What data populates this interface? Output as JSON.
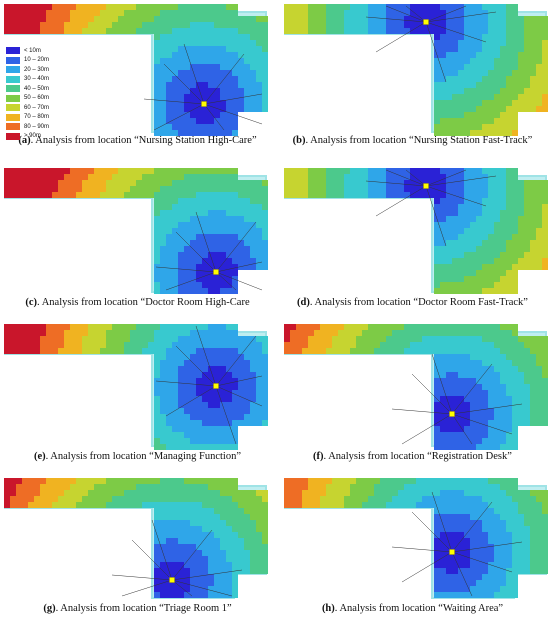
{
  "legend": {
    "items": [
      {
        "label": "< 10m",
        "color": "#2a22d6"
      },
      {
        "label": "10 – 20m",
        "color": "#2f63e6"
      },
      {
        "label": "20 – 30m",
        "color": "#2fa6e9"
      },
      {
        "label": "30 – 40m",
        "color": "#38c9cf"
      },
      {
        "label": "40 – 50m",
        "color": "#4cc98c"
      },
      {
        "label": "50 – 60m",
        "color": "#7dcb46"
      },
      {
        "label": "60 – 70m",
        "color": "#c6d430"
      },
      {
        "label": "70 – 80m",
        "color": "#f0b321"
      },
      {
        "label": "80 – 90m",
        "color": "#ee6d25"
      },
      {
        "label": "> 90m",
        "color": "#c9162b"
      }
    ]
  },
  "panels": [
    {
      "id": "a",
      "caption_id": "(a)",
      "caption_text": ". Analysis from location “Nursing Station High-Care”"
    },
    {
      "id": "b",
      "caption_id": "(b)",
      "caption_text": ". Analysis from location “Nursing Station Fast-Track”"
    },
    {
      "id": "c",
      "caption_id": "(c)",
      "caption_text": ". Analysis from location “Doctor Room High-Care"
    },
    {
      "id": "d",
      "caption_id": "(d)",
      "caption_text": ". Analysis from location “Doctor Room Fast-Track”"
    },
    {
      "id": "e",
      "caption_id": "(e)",
      "caption_text": ". Analysis from location “Managing Function”"
    },
    {
      "id": "f",
      "caption_id": "(f)",
      "caption_text": ". Analysis from location “Registration Desk”"
    },
    {
      "id": "g",
      "caption_id": "(g)",
      "caption_text": ". Analysis from location “Triage Room 1”"
    },
    {
      "id": "h",
      "caption_id": "(h)",
      "caption_text": ". Analysis from location “Waiting Area”"
    }
  ]
}
